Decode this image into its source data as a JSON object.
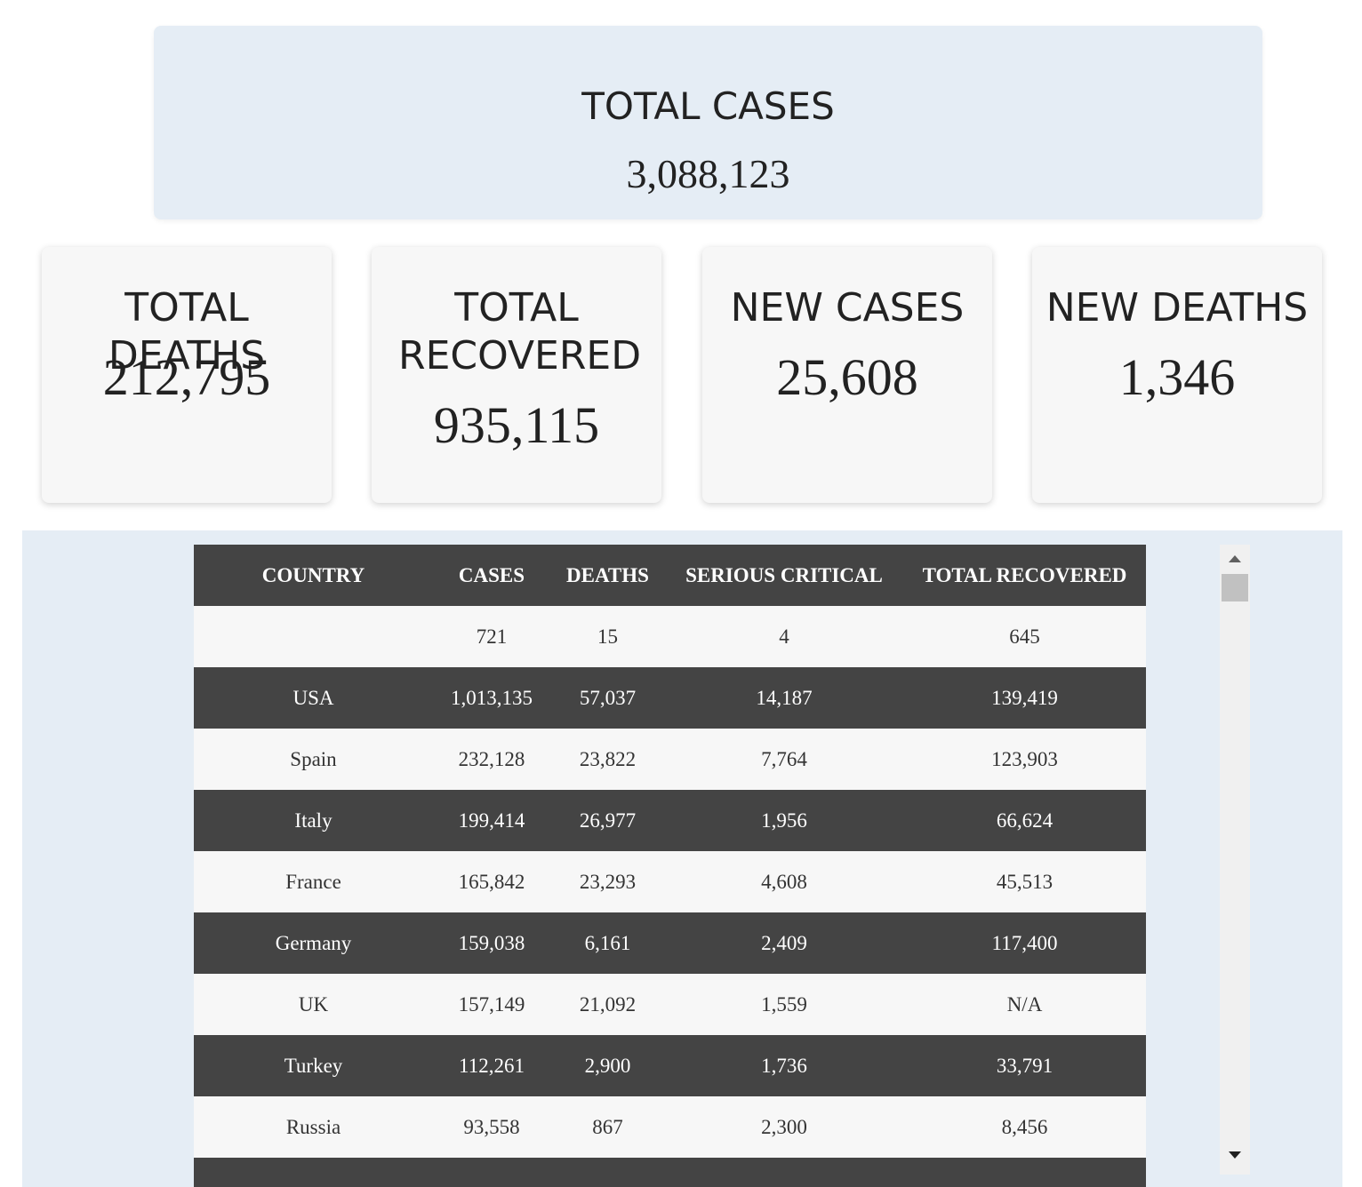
{
  "hero": {
    "label": "TOTAL CASES",
    "value": "3,088,123"
  },
  "cards": [
    {
      "label": "TOTAL DEATHS",
      "value": "212,795"
    },
    {
      "label": "TOTAL RECOVERED",
      "value": "935,115"
    },
    {
      "label": "NEW CASES",
      "value": "25,608"
    },
    {
      "label": "NEW DEATHS",
      "value": "1,346"
    }
  ],
  "table": {
    "headers": [
      "COUNTRY",
      "CASES",
      "DEATHS",
      "SERIOUS CRITICAL",
      "TOTAL RECOVERED"
    ],
    "rows": [
      [
        "",
        "721",
        "15",
        "4",
        "645"
      ],
      [
        "USA",
        "1,013,135",
        "57,037",
        "14,187",
        "139,419"
      ],
      [
        "Spain",
        "232,128",
        "23,822",
        "7,764",
        "123,903"
      ],
      [
        "Italy",
        "199,414",
        "26,977",
        "1,956",
        "66,624"
      ],
      [
        "France",
        "165,842",
        "23,293",
        "4,608",
        "45,513"
      ],
      [
        "Germany",
        "159,038",
        "6,161",
        "2,409",
        "117,400"
      ],
      [
        "UK",
        "157,149",
        "21,092",
        "1,559",
        "N/A"
      ],
      [
        "Turkey",
        "112,261",
        "2,900",
        "1,736",
        "33,791"
      ],
      [
        "Russia",
        "93,558",
        "867",
        "2,300",
        "8,456"
      ],
      [
        "",
        "",
        "",
        "",
        ""
      ]
    ]
  }
}
